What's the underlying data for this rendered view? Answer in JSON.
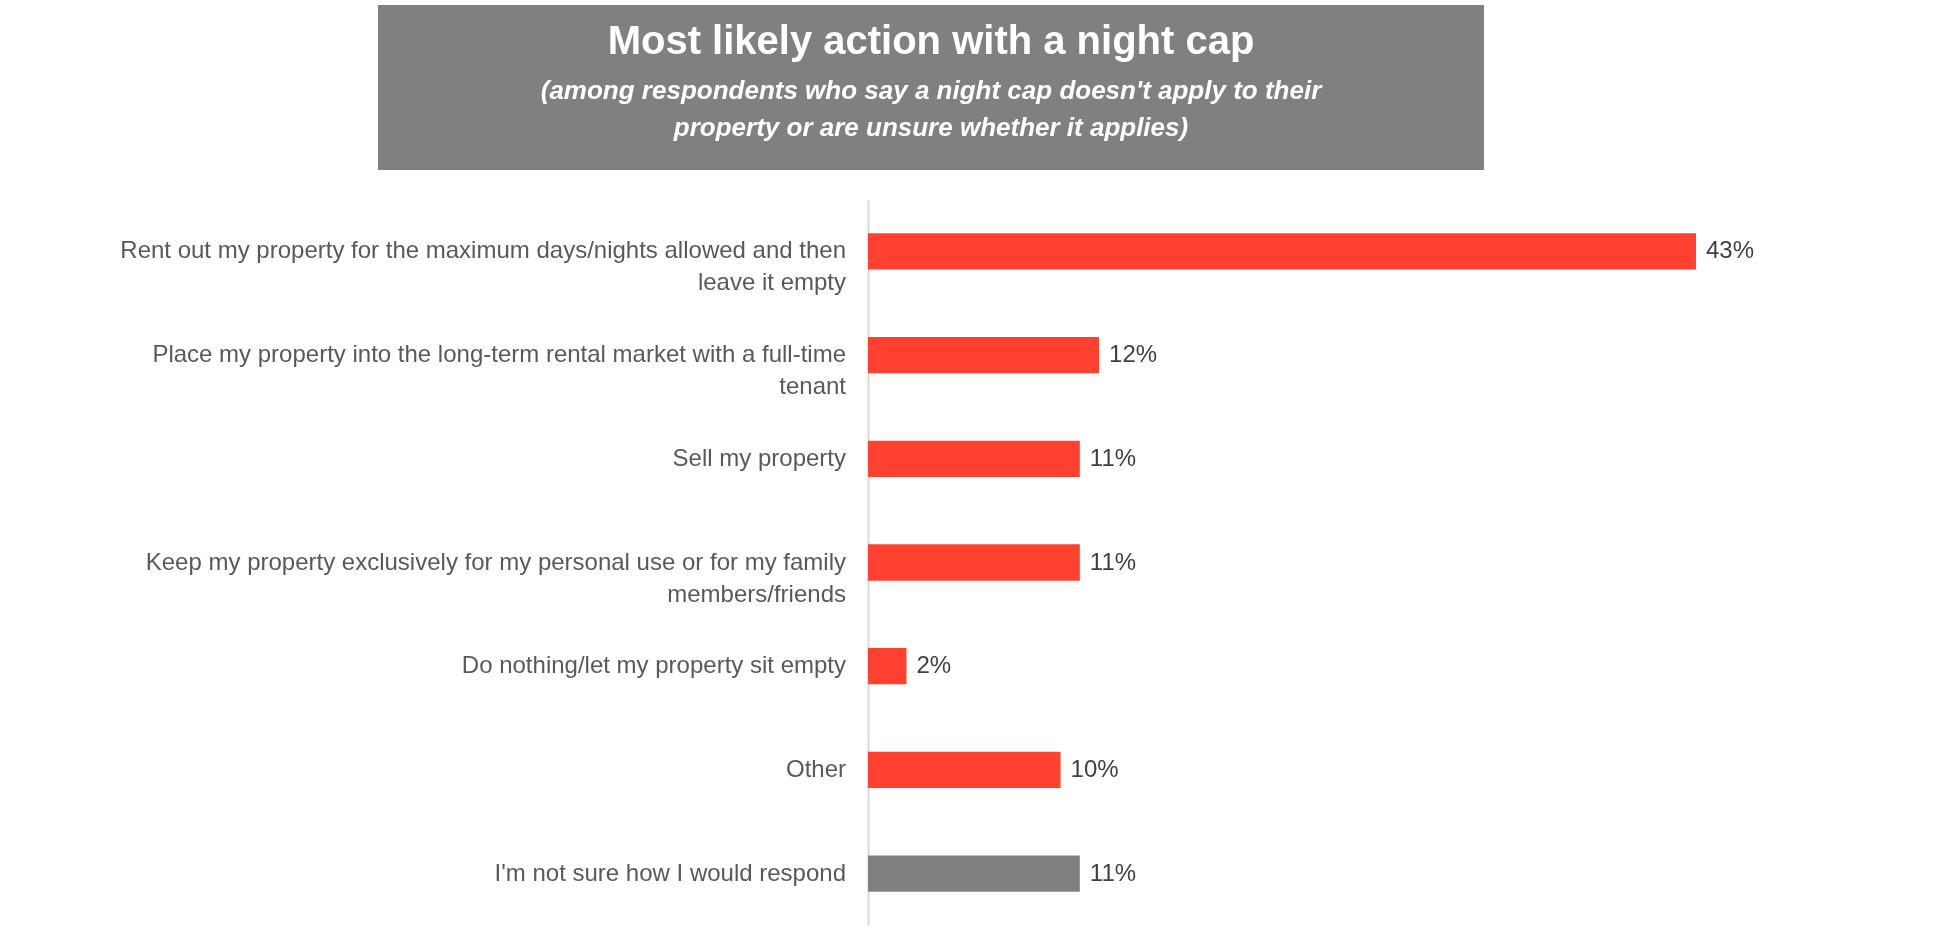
{
  "chart_data": {
    "type": "bar",
    "orientation": "horizontal",
    "title": "Most likely action with a night cap",
    "subtitle": "(among respondents who say a night cap doesn't apply to their property or are unsure whether it applies)",
    "categories": [
      "Rent out my property for the maximum days/nights allowed and then leave it empty",
      "Place my property into the long-term rental market with a full-time tenant",
      "Sell my property",
      "Keep my property exclusively for my personal use or for my family members/friends",
      "Do nothing/let my property sit empty",
      "Other",
      "I'm not sure how I would respond"
    ],
    "values": [
      43,
      12,
      11,
      11,
      2,
      10,
      11
    ],
    "value_labels": [
      "43%",
      "12%",
      "11%",
      "11%",
      "2%",
      "10%",
      "11%"
    ],
    "colors": [
      "#ff4130",
      "#ff4130",
      "#ff4130",
      "#ff4130",
      "#ff4130",
      "#ff4130",
      "#808080"
    ],
    "grid": false
  }
}
